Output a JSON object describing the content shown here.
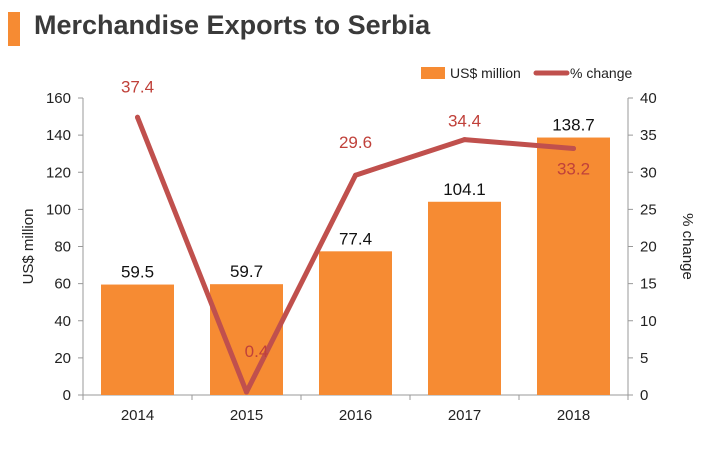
{
  "header": {
    "title": "Merchandise Exports to Serbia"
  },
  "colors": {
    "accent": "#F68B33",
    "bar": "#F68B33",
    "line": "#C0504D",
    "axis": "#999999",
    "title_text": "#3a3a3a"
  },
  "chart_data": {
    "type": "bar",
    "title": "Merchandise Exports to Serbia",
    "categories": [
      "2014",
      "2015",
      "2016",
      "2017",
      "2018"
    ],
    "series": [
      {
        "name": "US$ million",
        "kind": "bar",
        "axis": "left",
        "values": [
          59.5,
          59.7,
          77.4,
          104.1,
          138.7
        ],
        "labels": [
          "59.5",
          "59.7",
          "77.4",
          "104.1",
          "138.7"
        ]
      },
      {
        "name": "% change",
        "kind": "line",
        "axis": "right",
        "values": [
          37.4,
          0.4,
          29.6,
          34.4,
          33.2
        ],
        "labels": [
          "37.4",
          "0.4",
          "29.6",
          "34.4",
          "33.2"
        ]
      }
    ],
    "ylabel": "US$ million",
    "y2label": "% change",
    "ylim": [
      0,
      160
    ],
    "y2lim": [
      0,
      40
    ],
    "yticks": [
      "0",
      "20",
      "40",
      "60",
      "80",
      "100",
      "120",
      "140",
      "160"
    ],
    "y2ticks": [
      "0",
      "5",
      "10",
      "15",
      "20",
      "25",
      "30",
      "35",
      "40"
    ],
    "legend_position": "top-right",
    "grid": false
  }
}
